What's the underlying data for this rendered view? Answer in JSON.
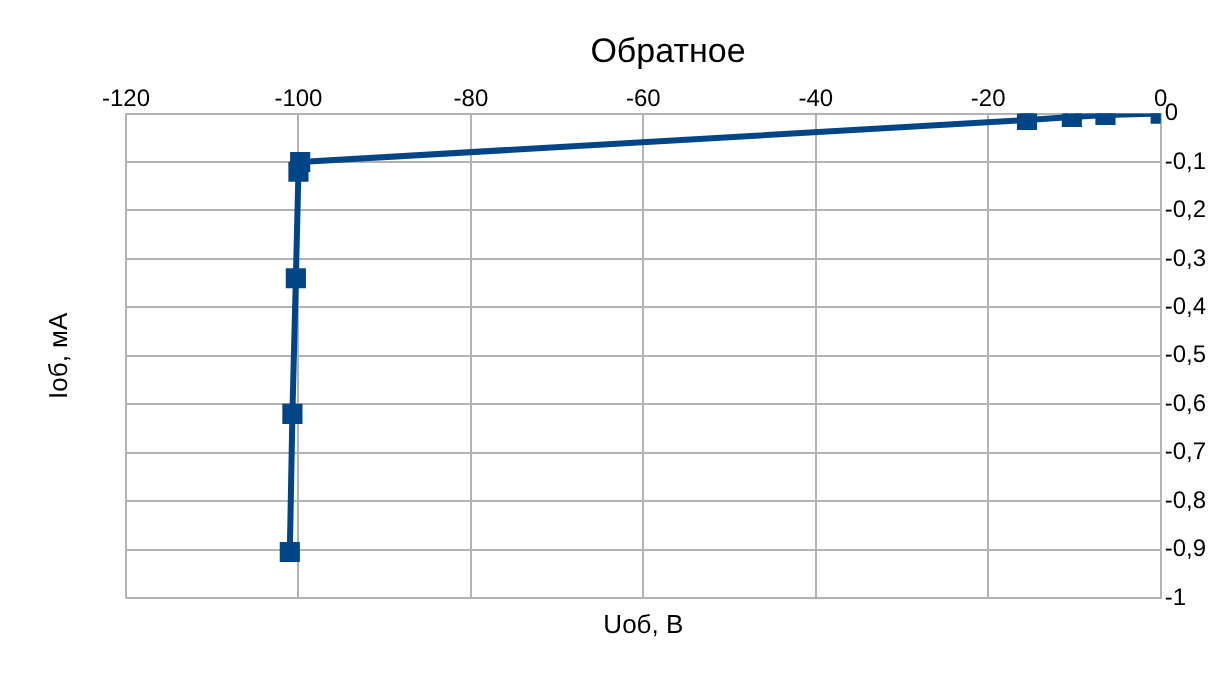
{
  "chart_data": {
    "type": "line",
    "title": "Обратное",
    "xlabel": "Uоб, В",
    "ylabel": "Iоб, мА",
    "series": [
      {
        "color": "#004586",
        "x": [
          0,
          -6.4,
          -10.3,
          -15.5,
          -99.8,
          -100,
          -100.3,
          -100.7,
          -101
        ],
        "values": [
          0,
          -0.003,
          -0.007,
          -0.013,
          -0.1,
          -0.12,
          -0.34,
          -0.62,
          -0.905
        ]
      }
    ],
    "xlim": [
      -120,
      0
    ],
    "xticks": [
      -120,
      -100,
      -80,
      -60,
      -40,
      -20,
      0
    ],
    "ylim": [
      -1,
      0
    ],
    "yticks": [
      {
        "value": -1,
        "label": "-1"
      },
      {
        "value": -0.9,
        "label": "-0,9"
      },
      {
        "value": -0.8,
        "label": "-0,8"
      },
      {
        "value": -0.7,
        "label": "-0,7"
      },
      {
        "value": -0.6,
        "label": "-0,6"
      },
      {
        "value": -0.5,
        "label": "-0,5"
      },
      {
        "value": -0.4,
        "label": "-0,4"
      },
      {
        "value": -0.3,
        "label": "-0,3"
      },
      {
        "value": -0.2,
        "label": "-0,2"
      },
      {
        "value": -0.1,
        "label": "-0,1"
      },
      {
        "value": 0,
        "label": "0"
      }
    ],
    "grid": true,
    "legend": false,
    "marker": "square",
    "line_style": "solid"
  }
}
